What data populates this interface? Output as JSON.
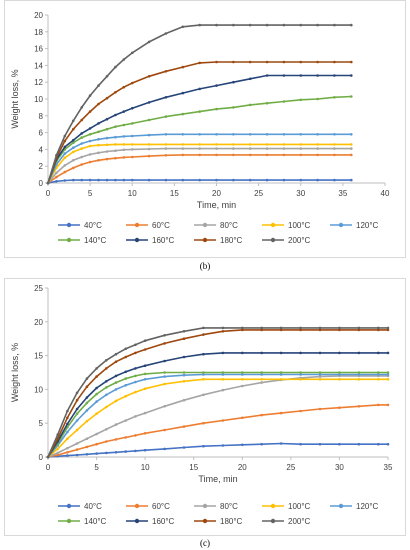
{
  "colors": {
    "40°C": "#4472C4",
    "60°C": "#ED7D31",
    "80°C": "#A5A5A5",
    "100°C": "#FFC000",
    "120°C": "#5B9BD5",
    "140°C": "#70AD47",
    "160°C": "#264478",
    "180°C": "#9E480E",
    "200°C": "#636363"
  },
  "chart_data": [
    {
      "type": "line",
      "panel": "(b)",
      "xlabel": "Time, min",
      "ylabel": "Weight loss, %",
      "xlim": [
        0,
        40
      ],
      "ylim": [
        0,
        20
      ],
      "xticks": [
        0,
        5,
        10,
        15,
        20,
        25,
        30,
        35,
        40
      ],
      "yticks": [
        0,
        2,
        4,
        6,
        8,
        10,
        12,
        14,
        16,
        18,
        20
      ],
      "legend_position": "bottom",
      "grid": false,
      "x": [
        0,
        1,
        2,
        3,
        4,
        5,
        6,
        7,
        8,
        9,
        10,
        12,
        14,
        16,
        18,
        20,
        22,
        24,
        26,
        28,
        30,
        32,
        34,
        36
      ],
      "series": [
        {
          "name": "40°C",
          "values": [
            0,
            0.2,
            0.3,
            0.35,
            0.35,
            0.35,
            0.35,
            0.35,
            0.35,
            0.35,
            0.35,
            0.35,
            0.35,
            0.35,
            0.35,
            0.35,
            0.35,
            0.35,
            0.35,
            0.35,
            0.35,
            0.35,
            0.35,
            0.35
          ]
        },
        {
          "name": "60°C",
          "values": [
            0,
            0.7,
            1.3,
            1.8,
            2.2,
            2.5,
            2.7,
            2.85,
            2.95,
            3.05,
            3.1,
            3.2,
            3.3,
            3.35,
            3.35,
            3.35,
            3.35,
            3.35,
            3.35,
            3.35,
            3.35,
            3.35,
            3.35,
            3.35
          ]
        },
        {
          "name": "80°C",
          "values": [
            0,
            1.2,
            2.1,
            2.7,
            3.1,
            3.4,
            3.6,
            3.75,
            3.85,
            3.95,
            4.0,
            4.05,
            4.1,
            4.1,
            4.1,
            4.1,
            4.1,
            4.1,
            4.1,
            4.1,
            4.1,
            4.1,
            4.1,
            4.1
          ]
        },
        {
          "name": "100°C",
          "values": [
            0,
            1.8,
            3.0,
            3.7,
            4.1,
            4.4,
            4.5,
            4.55,
            4.6,
            4.6,
            4.6,
            4.6,
            4.6,
            4.6,
            4.6,
            4.6,
            4.6,
            4.6,
            4.6,
            4.6,
            4.6,
            4.6,
            4.6,
            4.6
          ]
        },
        {
          "name": "120°C",
          "values": [
            0,
            2.2,
            3.5,
            4.2,
            4.7,
            5.0,
            5.2,
            5.35,
            5.45,
            5.55,
            5.6,
            5.7,
            5.8,
            5.8,
            5.8,
            5.8,
            5.8,
            5.8,
            5.8,
            5.8,
            5.8,
            5.8,
            5.8,
            5.8
          ]
        },
        {
          "name": "140°C",
          "values": [
            0,
            2.6,
            4.0,
            4.8,
            5.4,
            5.8,
            6.1,
            6.4,
            6.7,
            6.9,
            7.1,
            7.5,
            7.9,
            8.2,
            8.5,
            8.8,
            9.0,
            9.3,
            9.5,
            9.7,
            9.9,
            10.0,
            10.2,
            10.3
          ]
        },
        {
          "name": "160°C",
          "values": [
            0,
            2.8,
            4.3,
            5.1,
            5.9,
            6.5,
            7.1,
            7.6,
            8.1,
            8.5,
            8.9,
            9.6,
            10.2,
            10.7,
            11.2,
            11.6,
            12.0,
            12.4,
            12.8,
            12.8,
            12.8,
            12.8,
            12.8,
            12.8
          ]
        },
        {
          "name": "180°C",
          "values": [
            0,
            3.0,
            5.0,
            6.4,
            7.5,
            8.5,
            9.4,
            10.1,
            10.8,
            11.4,
            11.9,
            12.7,
            13.3,
            13.8,
            14.3,
            14.4,
            14.4,
            14.4,
            14.4,
            14.4,
            14.4,
            14.4,
            14.4,
            14.4
          ]
        },
        {
          "name": "200°C",
          "values": [
            0,
            3.3,
            5.6,
            7.4,
            9.0,
            10.4,
            11.6,
            12.7,
            13.8,
            14.7,
            15.5,
            16.8,
            17.8,
            18.6,
            18.8,
            18.8,
            18.8,
            18.8,
            18.8,
            18.8,
            18.8,
            18.8,
            18.8,
            18.8
          ]
        }
      ]
    },
    {
      "type": "line",
      "panel": "(c)",
      "xlabel": "Time, min",
      "ylabel": "Weight loss, %",
      "xlim": [
        0,
        35
      ],
      "ylim": [
        0,
        25
      ],
      "xticks": [
        0,
        5,
        10,
        15,
        20,
        25,
        30,
        35
      ],
      "yticks": [
        0,
        5,
        10,
        15,
        20,
        25
      ],
      "legend_position": "bottom",
      "grid": false,
      "x": [
        0,
        1,
        2,
        3,
        4,
        5,
        6,
        7,
        8,
        9,
        10,
        12,
        14,
        16,
        18,
        20,
        22,
        24,
        26,
        28,
        30,
        32,
        34,
        35
      ],
      "series": [
        {
          "name": "40°C",
          "values": [
            0,
            0.1,
            0.2,
            0.3,
            0.4,
            0.5,
            0.6,
            0.7,
            0.8,
            0.9,
            1.0,
            1.2,
            1.4,
            1.6,
            1.7,
            1.8,
            1.9,
            2.0,
            1.9,
            1.9,
            1.9,
            1.9,
            1.9,
            1.9
          ]
        },
        {
          "name": "60°C",
          "values": [
            0,
            0.3,
            0.7,
            1.1,
            1.5,
            1.9,
            2.3,
            2.6,
            2.9,
            3.2,
            3.5,
            4.0,
            4.5,
            5.0,
            5.4,
            5.8,
            6.2,
            6.5,
            6.8,
            7.1,
            7.3,
            7.5,
            7.7,
            7.7
          ]
        },
        {
          "name": "80°C",
          "values": [
            0,
            0.6,
            1.3,
            2.0,
            2.7,
            3.4,
            4.1,
            4.8,
            5.4,
            6.0,
            6.5,
            7.5,
            8.4,
            9.2,
            9.9,
            10.5,
            11.0,
            11.4,
            11.7,
            11.9,
            12.0,
            12.0,
            12.0,
            12.0
          ]
        },
        {
          "name": "100°C",
          "values": [
            0,
            1.2,
            2.7,
            4.0,
            5.3,
            6.4,
            7.4,
            8.3,
            9.0,
            9.6,
            10.1,
            10.8,
            11.2,
            11.5,
            11.5,
            11.5,
            11.5,
            11.5,
            11.5,
            11.5,
            11.5,
            11.5,
            11.5,
            11.5
          ]
        },
        {
          "name": "120°C",
          "values": [
            0,
            1.7,
            3.7,
            5.4,
            6.9,
            8.2,
            9.2,
            10.0,
            10.6,
            11.1,
            11.5,
            11.9,
            12.1,
            12.2,
            12.2,
            12.2,
            12.2,
            12.2,
            12.2,
            12.2,
            12.2,
            12.2,
            12.2,
            12.2
          ]
        },
        {
          "name": "140°C",
          "values": [
            0,
            2.0,
            4.4,
            6.4,
            8.0,
            9.3,
            10.3,
            11.0,
            11.6,
            12.0,
            12.3,
            12.5,
            12.5,
            12.5,
            12.5,
            12.5,
            12.5,
            12.5,
            12.5,
            12.5,
            12.5,
            12.5,
            12.5,
            12.5
          ]
        },
        {
          "name": "160°C",
          "values": [
            0,
            2.3,
            4.9,
            7.1,
            8.8,
            10.2,
            11.2,
            12.0,
            12.6,
            13.1,
            13.5,
            14.2,
            14.8,
            15.2,
            15.4,
            15.4,
            15.4,
            15.4,
            15.4,
            15.4,
            15.4,
            15.4,
            15.4,
            15.4
          ]
        },
        {
          "name": "180°C",
          "values": [
            0,
            2.7,
            5.8,
            8.4,
            10.4,
            11.9,
            13.1,
            14.1,
            14.8,
            15.4,
            15.9,
            16.8,
            17.5,
            18.1,
            18.6,
            18.8,
            18.8,
            18.8,
            18.8,
            18.8,
            18.8,
            18.8,
            18.8,
            18.8
          ]
        },
        {
          "name": "200°C",
          "values": [
            0,
            3.3,
            6.8,
            9.5,
            11.6,
            13.1,
            14.3,
            15.2,
            16.0,
            16.6,
            17.2,
            18.0,
            18.6,
            19.1,
            19.1,
            19.1,
            19.1,
            19.1,
            19.1,
            19.1,
            19.1,
            19.1,
            19.1,
            19.1
          ]
        }
      ]
    }
  ],
  "captions": [
    "(b)",
    "(c)"
  ]
}
